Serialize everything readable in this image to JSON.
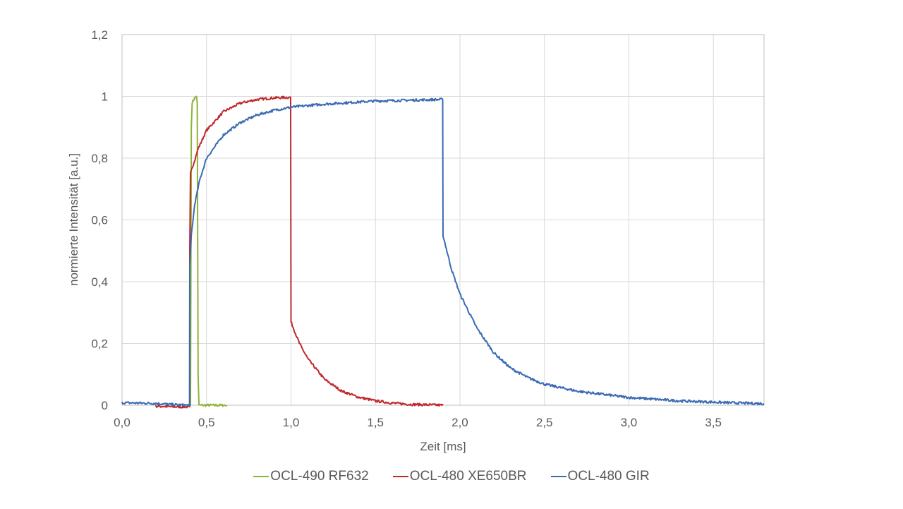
{
  "chart_data": {
    "type": "line",
    "title": "",
    "xlabel": "Zeit [ms]",
    "ylabel": "normierte Intensität [a.u.]",
    "xlim": [
      0,
      3.8
    ],
    "ylim": [
      0,
      1.2
    ],
    "grid": true,
    "legend_position": "bottom",
    "x_ticks": [
      0,
      0.5,
      1.0,
      1.5,
      2.0,
      2.5,
      3.0,
      3.5
    ],
    "x_tick_labels": [
      "0,0",
      "0,5",
      "1,0",
      "1,5",
      "2,0",
      "2,5",
      "3,0",
      "3,5"
    ],
    "y_ticks": [
      0,
      0.2,
      0.4,
      0.6,
      0.8,
      1.0,
      1.2
    ],
    "y_tick_labels": [
      "0",
      "0,2",
      "0,4",
      "0,6",
      "0,8",
      "1",
      "1,2"
    ],
    "series": [
      {
        "name": "OCL-490 RF632",
        "color": "#8db33a",
        "points": [
          [
            0.4,
            0.0
          ],
          [
            0.405,
            0.0
          ],
          [
            0.41,
            0.9
          ],
          [
            0.415,
            0.98
          ],
          [
            0.43,
            0.995
          ],
          [
            0.44,
            1.0
          ],
          [
            0.445,
            0.98
          ],
          [
            0.45,
            0.1
          ],
          [
            0.455,
            0.0
          ],
          [
            0.62,
            0.0
          ]
        ]
      },
      {
        "name": "OCL-480 XE650BR",
        "color": "#c0282d",
        "points": [
          [
            0.2,
            -0.003
          ],
          [
            0.3,
            -0.005
          ],
          [
            0.4,
            -0.005
          ],
          [
            0.401,
            0.5
          ],
          [
            0.405,
            0.75
          ],
          [
            0.45,
            0.83
          ],
          [
            0.5,
            0.89
          ],
          [
            0.6,
            0.95
          ],
          [
            0.7,
            0.978
          ],
          [
            0.8,
            0.99
          ],
          [
            0.9,
            0.995
          ],
          [
            0.998,
            0.997
          ],
          [
            1.0,
            0.27
          ],
          [
            1.05,
            0.2
          ],
          [
            1.1,
            0.15
          ],
          [
            1.2,
            0.083
          ],
          [
            1.3,
            0.046
          ],
          [
            1.4,
            0.026
          ],
          [
            1.5,
            0.014
          ],
          [
            1.6,
            0.007
          ],
          [
            1.7,
            0.003
          ],
          [
            1.9,
            0.0
          ]
        ]
      },
      {
        "name": "OCL-480 GIR",
        "color": "#3a6bb3",
        "points": [
          [
            0.0,
            0.008
          ],
          [
            0.2,
            0.006
          ],
          [
            0.3,
            0.002
          ],
          [
            0.4,
            0.0
          ],
          [
            0.401,
            0.45
          ],
          [
            0.41,
            0.55
          ],
          [
            0.43,
            0.65
          ],
          [
            0.46,
            0.73
          ],
          [
            0.5,
            0.8
          ],
          [
            0.6,
            0.875
          ],
          [
            0.7,
            0.915
          ],
          [
            0.8,
            0.94
          ],
          [
            0.9,
            0.955
          ],
          [
            1.0,
            0.965
          ],
          [
            1.2,
            0.975
          ],
          [
            1.5,
            0.985
          ],
          [
            1.898,
            0.99
          ],
          [
            1.9,
            0.55
          ],
          [
            1.95,
            0.44
          ],
          [
            2.0,
            0.36
          ],
          [
            2.1,
            0.25
          ],
          [
            2.2,
            0.17
          ],
          [
            2.3,
            0.12
          ],
          [
            2.4,
            0.09
          ],
          [
            2.5,
            0.068
          ],
          [
            2.7,
            0.045
          ],
          [
            3.0,
            0.025
          ],
          [
            3.3,
            0.014
          ],
          [
            3.6,
            0.008
          ],
          [
            3.8,
            0.005
          ]
        ]
      }
    ]
  }
}
